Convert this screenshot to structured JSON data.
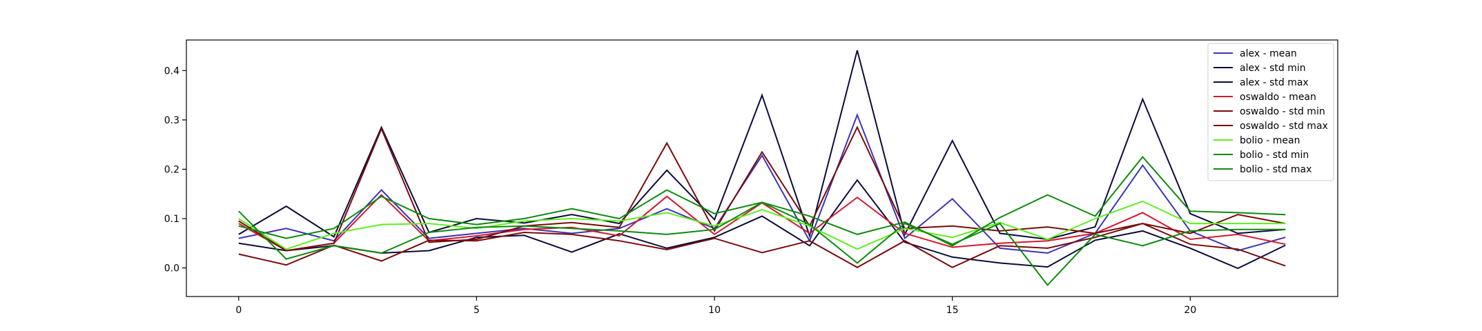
{
  "chart_data": {
    "type": "line",
    "title": "",
    "xlabel": "",
    "ylabel": "",
    "xlim": [
      -1.1,
      23.1
    ],
    "ylim": [
      -0.058,
      0.462
    ],
    "xticks": [
      0,
      5,
      10,
      15,
      20
    ],
    "yticks": [
      0.0,
      0.1,
      0.2,
      0.3,
      0.4
    ],
    "ytick_labels": [
      "0.0",
      "0.1",
      "0.2",
      "0.3",
      "0.4"
    ],
    "grid": false,
    "legend_position": "top-right",
    "x": [
      0,
      1,
      2,
      3,
      4,
      5,
      6,
      7,
      8,
      9,
      10,
      11,
      12,
      13,
      14,
      15,
      16,
      17,
      18,
      19,
      20,
      21,
      22
    ],
    "series": [
      {
        "name": "alex - mean",
        "color": "#3a33b8",
        "values": [
          0.06,
          0.08,
          0.055,
          0.158,
          0.06,
          0.07,
          0.08,
          0.07,
          0.08,
          0.12,
          0.08,
          0.228,
          0.055,
          0.31,
          0.06,
          0.14,
          0.04,
          0.03,
          0.07,
          0.208,
          0.075,
          0.035,
          0.062
        ]
      },
      {
        "name": "alex - std min",
        "color": "#0a0a3c",
        "values": [
          0.05,
          0.035,
          0.045,
          0.03,
          0.035,
          0.062,
          0.066,
          0.032,
          0.069,
          0.04,
          0.062,
          0.105,
          0.045,
          0.178,
          0.052,
          0.022,
          0.01,
          0.002,
          0.056,
          0.075,
          0.04,
          -0.001,
          0.046
        ]
      },
      {
        "name": "alex - std max",
        "color": "#0a0a3c",
        "values": [
          0.068,
          0.125,
          0.063,
          0.285,
          0.072,
          0.1,
          0.091,
          0.108,
          0.09,
          0.198,
          0.098,
          0.35,
          0.065,
          0.441,
          0.068,
          0.258,
          0.07,
          0.058,
          0.083,
          0.342,
          0.11,
          0.07,
          0.078
        ]
      },
      {
        "name": "oswaldo - mean",
        "color": "#d6162b",
        "values": [
          0.09,
          0.035,
          0.05,
          0.148,
          0.055,
          0.065,
          0.078,
          0.082,
          0.065,
          0.145,
          0.068,
          0.132,
          0.07,
          0.143,
          0.07,
          0.042,
          0.05,
          0.055,
          0.07,
          0.112,
          0.058,
          0.068,
          0.048
        ]
      },
      {
        "name": "oswaldo - std min",
        "color": "#7a0a0a",
        "values": [
          0.028,
          0.006,
          0.046,
          0.014,
          0.056,
          0.055,
          0.072,
          0.068,
          0.055,
          0.037,
          0.06,
          0.031,
          0.055,
          0.001,
          0.055,
          0.001,
          0.045,
          0.04,
          0.062,
          0.09,
          0.048,
          0.038,
          0.004
        ]
      },
      {
        "name": "oswaldo - std max",
        "color": "#7a0a0a",
        "values": [
          0.095,
          0.035,
          0.05,
          0.282,
          0.052,
          0.058,
          0.085,
          0.092,
          0.082,
          0.253,
          0.075,
          0.235,
          0.085,
          0.285,
          0.08,
          0.085,
          0.075,
          0.083,
          0.07,
          0.09,
          0.07,
          0.108,
          0.09
        ]
      },
      {
        "name": "bolio - mean",
        "color": "#5ef01c",
        "values": [
          0.1,
          0.038,
          0.07,
          0.088,
          0.09,
          0.08,
          0.095,
          0.1,
          0.095,
          0.112,
          0.085,
          0.118,
          0.085,
          0.038,
          0.08,
          0.062,
          0.092,
          0.058,
          0.1,
          0.135,
          0.09,
          0.09,
          0.09
        ]
      },
      {
        "name": "bolio - std min",
        "color": "#0c8a0c",
        "values": [
          0.115,
          0.018,
          0.045,
          0.03,
          0.072,
          0.082,
          0.085,
          0.08,
          0.075,
          0.068,
          0.078,
          0.133,
          0.088,
          0.01,
          0.09,
          0.048,
          0.09,
          -0.035,
          0.068,
          0.045,
          0.075,
          0.078,
          0.078
        ]
      },
      {
        "name": "bolio - std max",
        "color": "#0c8a0c",
        "values": [
          0.085,
          0.06,
          0.08,
          0.145,
          0.1,
          0.088,
          0.1,
          0.12,
          0.1,
          0.158,
          0.11,
          0.133,
          0.105,
          0.068,
          0.093,
          0.045,
          0.102,
          0.148,
          0.105,
          0.225,
          0.115,
          0.112,
          0.108
        ]
      }
    ]
  }
}
